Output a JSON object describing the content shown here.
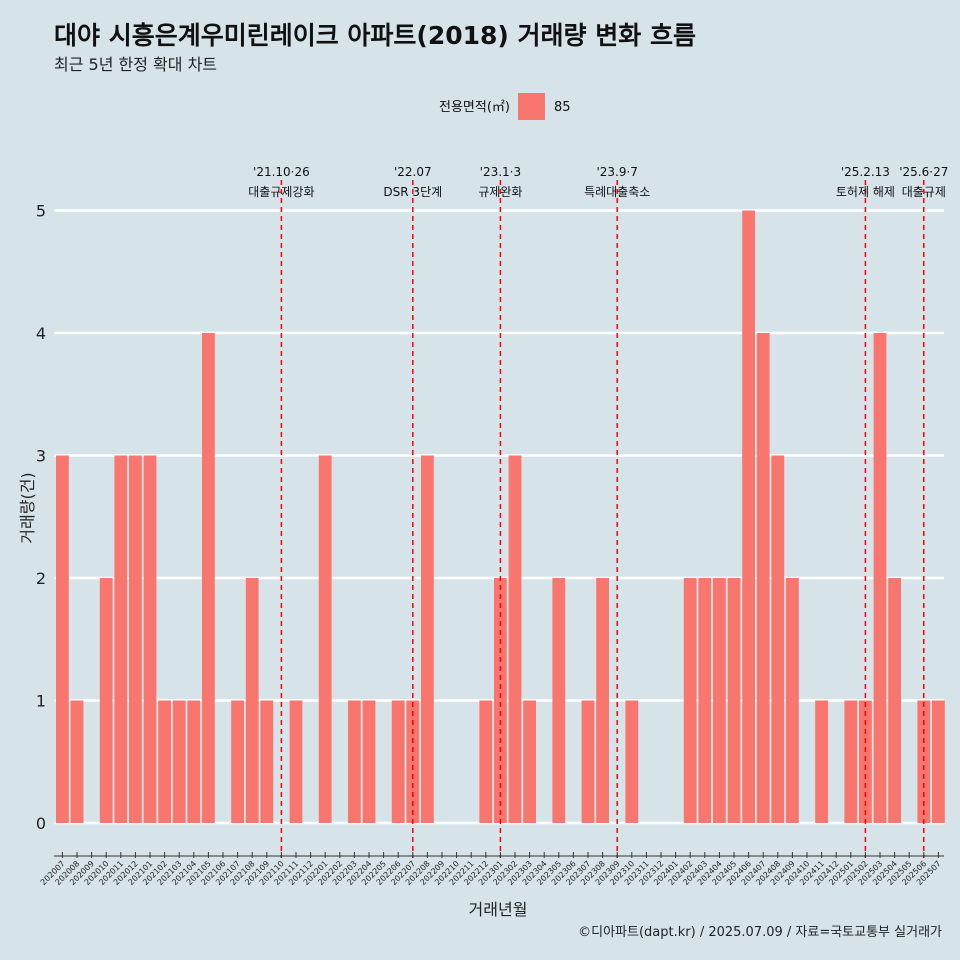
{
  "title": "대야 시흥은계우미린레이크 아파트(2018) 거래량 변화 흐름",
  "subtitle": "최근 5년 한정 확대 차트",
  "caption": "©디아파트(dapt.kr) / 2025.07.09 / 자료=국토교통부 실거래가",
  "legend": {
    "title": "전용면적(㎡)",
    "label": "85"
  },
  "colors": {
    "bar": "#f8766d",
    "background": "#d6e4ea",
    "event_line": "#ff0000",
    "grid": "#ffffff"
  },
  "chart_data": {
    "type": "bar",
    "title": "대야 시흥은계우미린레이크 아파트(2018) 거래량 변화 흐름",
    "xlabel": "거래년월",
    "ylabel": "거래량(건)",
    "ylim": [
      0,
      5
    ],
    "yticks": [
      0,
      1,
      2,
      3,
      4,
      5
    ],
    "grid": "horizontal",
    "legend_position": "top",
    "categories": [
      "202007",
      "202008",
      "202009",
      "202010",
      "202011",
      "202012",
      "202101",
      "202102",
      "202103",
      "202104",
      "202105",
      "202106",
      "202107",
      "202108",
      "202109",
      "202110",
      "202111",
      "202112",
      "202201",
      "202202",
      "202203",
      "202204",
      "202205",
      "202206",
      "202207",
      "202208",
      "202209",
      "202210",
      "202211",
      "202212",
      "202301",
      "202302",
      "202303",
      "202304",
      "202305",
      "202306",
      "202307",
      "202308",
      "202309",
      "202310",
      "202311",
      "202312",
      "202401",
      "202402",
      "202403",
      "202404",
      "202405",
      "202406",
      "202407",
      "202408",
      "202409",
      "202410",
      "202411",
      "202412",
      "202501",
      "202502",
      "202503",
      "202504",
      "202505",
      "202506",
      "202507"
    ],
    "series": [
      {
        "name": "85",
        "values": [
          3,
          1,
          0,
          2,
          3,
          3,
          3,
          1,
          1,
          1,
          4,
          0,
          1,
          2,
          1,
          0,
          1,
          0,
          3,
          0,
          1,
          1,
          0,
          1,
          1,
          3,
          0,
          0,
          0,
          1,
          2,
          3,
          1,
          0,
          2,
          0,
          1,
          2,
          0,
          1,
          0,
          0,
          0,
          2,
          2,
          2,
          2,
          5,
          4,
          3,
          2,
          0,
          1,
          0,
          1,
          1,
          4,
          2,
          0,
          1,
          1
        ]
      }
    ],
    "events": [
      {
        "x": "202110",
        "date": "'21.10·26",
        "label": "대출규제강화"
      },
      {
        "x": "202207",
        "date": "'22.07",
        "label": "DSR 3단계"
      },
      {
        "x": "202301",
        "date": "'23.1·3",
        "label": "규제완화"
      },
      {
        "x": "202309",
        "date": "'23.9·7",
        "label": "특례대출축소"
      },
      {
        "x": "202502",
        "date": "'25.2.13",
        "label": "토허제 해제"
      },
      {
        "x": "202506",
        "date": "'25.6·27",
        "label": "대출규제"
      }
    ]
  }
}
